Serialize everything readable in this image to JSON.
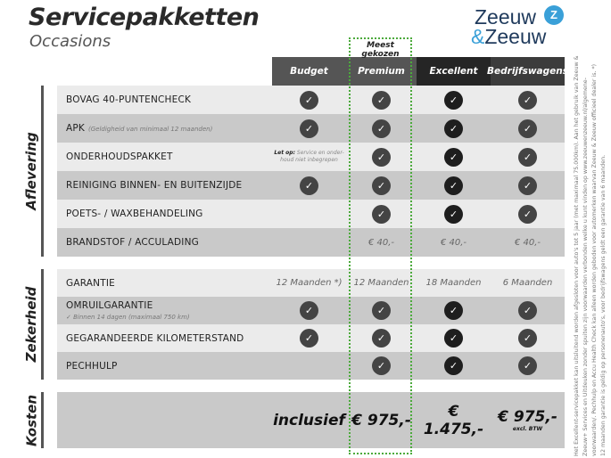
{
  "header": {
    "title": "Servicepakketten",
    "subtitle": "Occasions",
    "logo": {
      "line1": "Zeeuw",
      "amp": "&",
      "line2": "Zeeuw"
    }
  },
  "highlight": {
    "label": "Meest gekozen",
    "color": "#4caa3c"
  },
  "columns": [
    "Budget",
    "Premium",
    "Excellent",
    "Bedrijfswagens"
  ],
  "sections": [
    {
      "label": "Aflevering",
      "rows": [
        {
          "label": "BOVAG 40-PUNTENCHECK",
          "cells": [
            "check",
            "check",
            "check",
            "check"
          ]
        },
        {
          "label": "APK",
          "sub": "(Geldigheid van minimaal 12 maanden)",
          "cells": [
            "check",
            "check",
            "check",
            "check"
          ]
        },
        {
          "label": "ONDERHOUDSPAKKET",
          "note": {
            "bold": "Let op:",
            "text": "Service en onder-houd niet inbegrepen"
          },
          "cells": [
            "note",
            "check",
            "check",
            "check"
          ]
        },
        {
          "label": "REINIGING BINNEN- EN BUITENZIJDE",
          "cells": [
            "check",
            "check",
            "check",
            "check"
          ]
        },
        {
          "label": "POETS- / WAXBEHANDELING",
          "cells": [
            "",
            "check",
            "check",
            "check"
          ]
        },
        {
          "label": "BRANDSTOF / ACCULADING",
          "cells": [
            "",
            "€ 40,-",
            "€ 40,-",
            "€ 40,-"
          ]
        }
      ]
    },
    {
      "label": "Zekerheid",
      "rows": [
        {
          "label": "GARANTIE",
          "cells": [
            "12 Maanden *)",
            "12 Maanden",
            "18 Maanden",
            "6 Maanden"
          ]
        },
        {
          "label": "OMRUILGARANTIE",
          "sub2": "✓   Binnen 14 dagen (maximaal 750 km)",
          "cells": [
            "check",
            "check",
            "check",
            "check"
          ]
        },
        {
          "label": "GEGARANDEERDE KILOMETERSTAND",
          "cells": [
            "check",
            "check",
            "check",
            "check"
          ]
        },
        {
          "label": "PECHHULP",
          "cells": [
            "",
            "check",
            "check",
            "check"
          ]
        }
      ]
    },
    {
      "label": "Kosten",
      "prices": [
        "inclusief",
        "€ 975,-",
        "€ 1.475,-",
        "€ 975,-"
      ],
      "price_note": "excl. BTW"
    }
  ],
  "footnote": "Het Excellent-servicepakket kan uitsluitend worden afgesloten voor auto's tot 5 jaar (met maximaal 75.000km). Aan het gebruik van Zeeuw & Zeeuw+ Services en Uitdeuken zonder spuiten zijn voorwaarden verbonden welke u kunt vinden op www.zeeuwenzeeuw.nl/algemene-voorwaarden/. Pechhulp en Accu Health Check kan alleen worden geboden voor automerken waarvan Zeeuw & Zeeuw officieel dealer is. *) 12 maanden garantie is geldig op personenauto's, voor bedrijfswagens geldt een garantie van 6 maanden."
}
